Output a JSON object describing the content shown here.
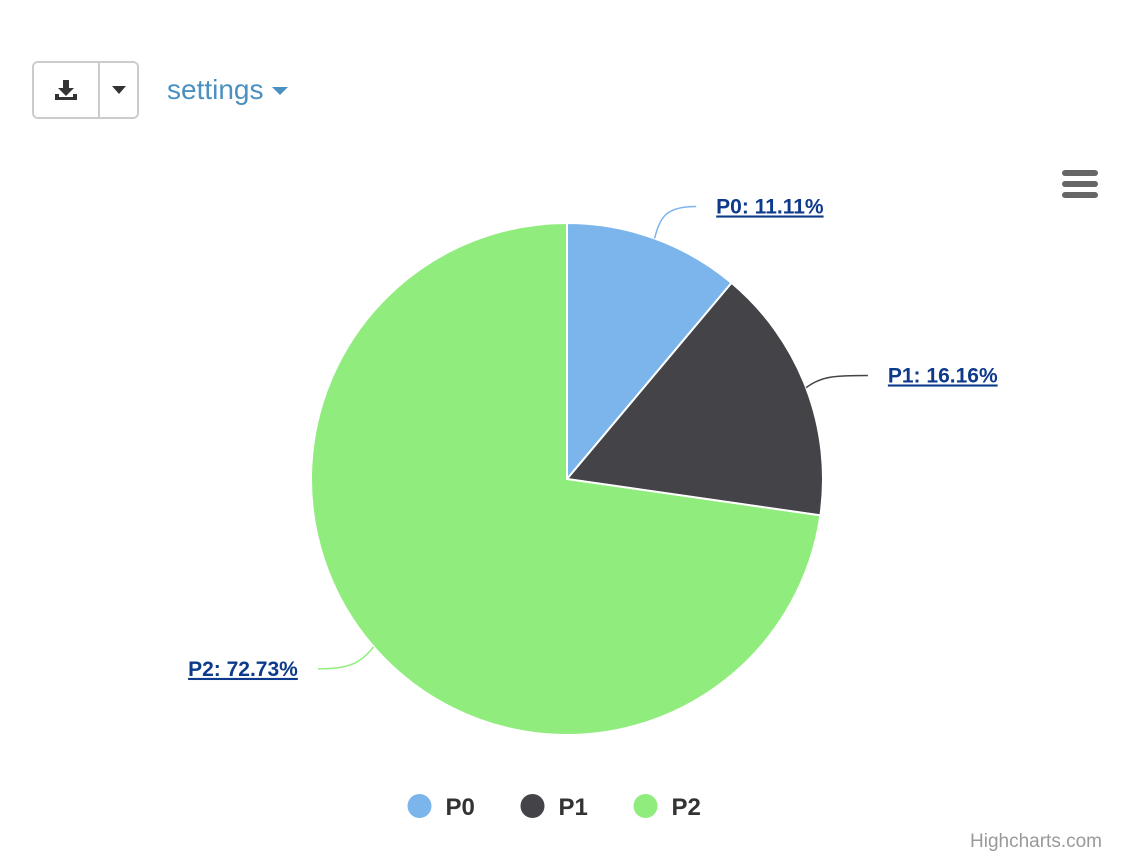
{
  "toolbar": {
    "download_icon": "download-icon",
    "caret_icon": "caret-down-icon",
    "settings_label": "settings"
  },
  "menu_icon": "hamburger-menu-icon",
  "credits": "Highcharts.com",
  "chart_data": {
    "type": "pie",
    "title": "",
    "slices": [
      {
        "name": "P0",
        "value": 11.11,
        "label": "P0: 11.11%",
        "color": "#7cb5ec"
      },
      {
        "name": "P1",
        "value": 16.16,
        "label": "P1: 16.16%",
        "color": "#434348"
      },
      {
        "name": "P2",
        "value": 72.73,
        "label": "P2: 72.73%",
        "color": "#90ed7d"
      }
    ],
    "legend": {
      "position": "bottom-center",
      "items": [
        "P0",
        "P1",
        "P2"
      ]
    },
    "data_label_color": "#0d3a8a"
  }
}
